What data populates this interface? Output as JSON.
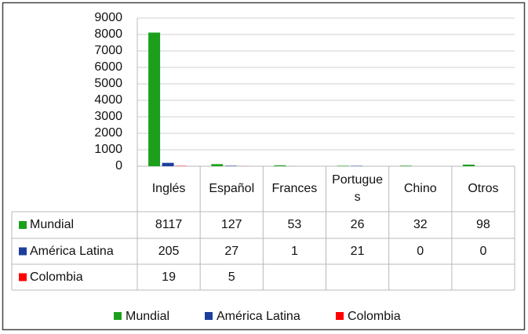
{
  "chart_data": {
    "type": "bar",
    "categories": [
      "Inglés",
      "Español",
      "Frances",
      "Portugues",
      "Chino",
      "Otros"
    ],
    "series": [
      {
        "name": "Mundial",
        "color": "#1ca01c",
        "values": [
          8117,
          127,
          53,
          26,
          32,
          98
        ]
      },
      {
        "name": "América Latina",
        "color": "#1c3f9e",
        "values": [
          205,
          27,
          1,
          21,
          0,
          0
        ]
      },
      {
        "name": "Colombia",
        "color": "#ff0000",
        "values": [
          19,
          5,
          null,
          null,
          null,
          null
        ]
      }
    ],
    "ylim": [
      0,
      9000
    ],
    "yticks": [
      0,
      1000,
      2000,
      3000,
      4000,
      5000,
      6000,
      7000,
      8000,
      9000
    ],
    "grid": true
  }
}
